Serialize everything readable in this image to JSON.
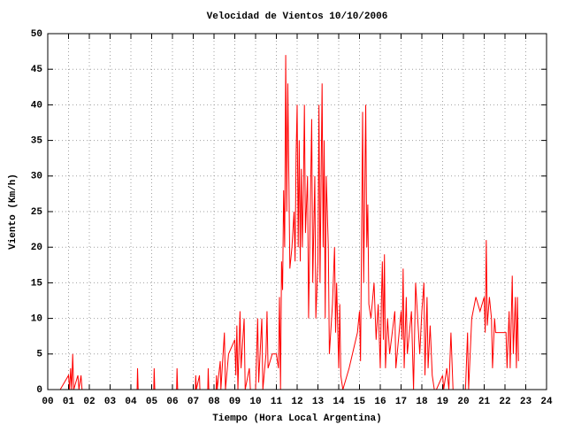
{
  "chart_data": {
    "type": "line",
    "title": "Velocidad de Vientos 10/10/2006",
    "x_label": "Tiempo (Hora Local Argentina)",
    "y_label": "Viento (Km/h)",
    "xlim": [
      0,
      24
    ],
    "ylim": [
      0,
      50
    ],
    "grid": true,
    "xticks": [
      {
        "value": 0,
        "label": "00"
      },
      {
        "value": 1,
        "label": "01"
      },
      {
        "value": 2,
        "label": "02"
      },
      {
        "value": 3,
        "label": "03"
      },
      {
        "value": 4,
        "label": "04"
      },
      {
        "value": 5,
        "label": "05"
      },
      {
        "value": 6,
        "label": "06"
      },
      {
        "value": 7,
        "label": "07"
      },
      {
        "value": 8,
        "label": "08"
      },
      {
        "value": 9,
        "label": "09"
      },
      10,
      11,
      12,
      13,
      14,
      15,
      16,
      17,
      18,
      19,
      20,
      21,
      22,
      23,
      24
    ],
    "yticks": [
      0,
      5,
      10,
      15,
      20,
      25,
      30,
      35,
      40,
      45,
      50
    ],
    "series": [
      {
        "color": "#ff0000",
        "x": [
          0.6,
          1.0,
          1.05,
          1.1,
          1.15,
          1.2,
          1.25,
          1.45,
          1.5,
          1.6,
          1.65,
          4.3,
          4.32,
          4.35,
          5.1,
          5.12,
          5.15,
          6.2,
          6.22,
          6.25,
          7.1,
          7.12,
          7.15,
          7.3,
          7.32,
          7.7,
          7.72,
          7.75,
          8.1,
          8.12,
          8.15,
          8.3,
          8.33,
          8.5,
          8.55,
          8.7,
          9.0,
          9.05,
          9.1,
          9.15,
          9.25,
          9.3,
          9.45,
          9.5,
          9.7,
          9.75,
          10.0,
          10.1,
          10.15,
          10.3,
          10.35,
          10.5,
          10.55,
          10.6,
          10.8,
          11.0,
          11.1,
          11.15,
          11.2,
          11.25,
          11.3,
          11.35,
          11.4,
          11.45,
          11.5,
          11.55,
          11.6,
          11.65,
          11.75,
          11.85,
          11.9,
          11.95,
          12.0,
          12.05,
          12.1,
          12.15,
          12.2,
          12.25,
          12.3,
          12.35,
          12.4,
          12.5,
          12.55,
          12.7,
          12.75,
          12.85,
          12.9,
          13.0,
          13.05,
          13.1,
          13.2,
          13.25,
          13.3,
          13.35,
          13.4,
          13.5,
          13.55,
          13.7,
          13.8,
          13.85,
          13.9,
          14.0,
          14.05,
          14.1,
          14.2,
          14.5,
          14.9,
          15.0,
          15.05,
          15.15,
          15.2,
          15.3,
          15.35,
          15.4,
          15.45,
          15.55,
          15.7,
          15.8,
          15.9,
          16.0,
          16.05,
          16.1,
          16.15,
          16.2,
          16.25,
          16.35,
          16.45,
          16.7,
          16.75,
          17.0,
          17.05,
          17.1,
          17.15,
          17.25,
          17.3,
          17.5,
          17.6,
          17.7,
          17.8,
          17.9,
          18.0,
          18.1,
          18.15,
          18.25,
          18.3,
          18.4,
          18.5,
          18.6,
          18.7,
          19.0,
          19.05,
          19.2,
          19.3,
          19.4,
          19.5,
          19.8,
          20.1,
          20.2,
          20.25,
          20.4,
          20.6,
          20.8,
          21.0,
          21.05,
          21.1,
          21.15,
          21.25,
          21.35,
          21.4,
          21.5,
          21.55,
          21.8,
          22.05,
          22.1,
          22.2,
          22.25,
          22.35,
          22.4,
          22.5,
          22.55,
          22.6,
          22.65
        ],
        "values": [
          0,
          2,
          0,
          3,
          0,
          5,
          0,
          2,
          0,
          2,
          0,
          0,
          3,
          0,
          0,
          3,
          0,
          0,
          3,
          0,
          0,
          2,
          0,
          2,
          0,
          0,
          3,
          0,
          0,
          2,
          0,
          4,
          0,
          8,
          0,
          5,
          7,
          2,
          9,
          0,
          11,
          3,
          10,
          0,
          3,
          0,
          0,
          10,
          1,
          10,
          0,
          5,
          11,
          3,
          5,
          5,
          3,
          13,
          0,
          18,
          14,
          28,
          20,
          47,
          25,
          43,
          30,
          17,
          20,
          25,
          18,
          33,
          40,
          20,
          35,
          18,
          31,
          20,
          28,
          40,
          22,
          30,
          10,
          38,
          15,
          30,
          10,
          18,
          40,
          15,
          43,
          20,
          35,
          10,
          30,
          20,
          5,
          12,
          20,
          8,
          15,
          3,
          12,
          2,
          0,
          3,
          8,
          11,
          4,
          39,
          15,
          40,
          20,
          26,
          12,
          10,
          15,
          7,
          12,
          3,
          12,
          18,
          7,
          19,
          3,
          10,
          5,
          11,
          3,
          11,
          7,
          17,
          3,
          13,
          5,
          11,
          0,
          15,
          10,
          5,
          11,
          15,
          2,
          13,
          3,
          9,
          2,
          0,
          0,
          2,
          0,
          3,
          0,
          8,
          0,
          0,
          0,
          8,
          0,
          10,
          13,
          11,
          13,
          8,
          21,
          9,
          13,
          10,
          3,
          10,
          8,
          8,
          8,
          3,
          11,
          3,
          16,
          5,
          13,
          3,
          13,
          4
        ]
      }
    ]
  }
}
